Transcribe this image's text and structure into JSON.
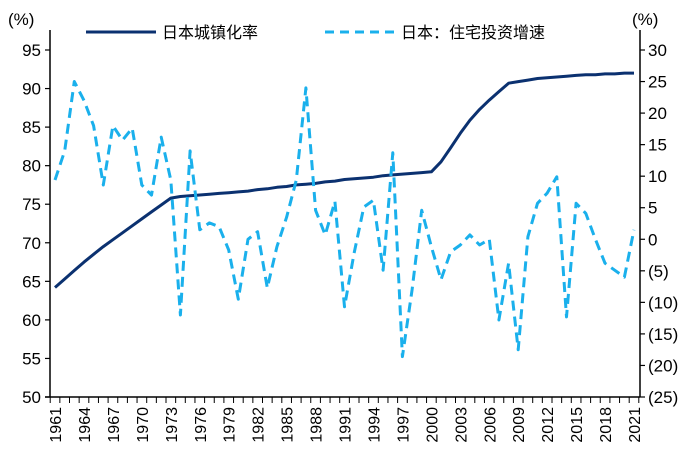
{
  "chart_data": {
    "type": "line",
    "left_unit": "(%)",
    "right_unit": "(%)",
    "left_ylim": [
      50,
      95
    ],
    "left_ticks": [
      "50",
      "55",
      "60",
      "65",
      "70",
      "75",
      "80",
      "85",
      "90",
      "95"
    ],
    "right_ylim": [
      -25,
      30
    ],
    "right_ticks": [
      "(25)",
      "(20)",
      "(15)",
      "(10)",
      "(5)",
      "0",
      "5",
      "10",
      "15",
      "20",
      "25",
      "30"
    ],
    "x_tick_labels": [
      "1961",
      "1964",
      "1967",
      "1970",
      "1973",
      "1976",
      "1979",
      "1982",
      "1985",
      "1988",
      "1991",
      "1994",
      "1997",
      "2000",
      "2003",
      "2006",
      "2009",
      "2012",
      "2015",
      "2018",
      "2021"
    ],
    "grid": false,
    "legend_position": "top",
    "x": [
      1961,
      1962,
      1963,
      1964,
      1965,
      1966,
      1967,
      1968,
      1969,
      1970,
      1971,
      1972,
      1973,
      1974,
      1975,
      1976,
      1977,
      1978,
      1979,
      1980,
      1981,
      1982,
      1983,
      1984,
      1985,
      1986,
      1987,
      1988,
      1989,
      1990,
      1991,
      1992,
      1993,
      1994,
      1995,
      1996,
      1997,
      1998,
      1999,
      2000,
      2001,
      2002,
      2003,
      2004,
      2005,
      2006,
      2007,
      2008,
      2009,
      2010,
      2011,
      2012,
      2013,
      2014,
      2015,
      2016,
      2017,
      2018,
      2019,
      2020,
      2021
    ],
    "series": [
      {
        "name": "日本城镇化率",
        "axis": "left",
        "color": "#0b3170",
        "style": "solid",
        "values": [
          64.2,
          65.3,
          66.4,
          67.5,
          68.5,
          69.5,
          70.4,
          71.3,
          72.2,
          73.1,
          74.0,
          74.9,
          75.8,
          76.0,
          76.1,
          76.2,
          76.3,
          76.4,
          76.5,
          76.6,
          76.7,
          76.9,
          77.0,
          77.2,
          77.3,
          77.5,
          77.6,
          77.7,
          77.9,
          78.0,
          78.2,
          78.3,
          78.4,
          78.5,
          78.7,
          78.8,
          78.9,
          79.0,
          79.1,
          79.2,
          80.5,
          82.3,
          84.2,
          85.9,
          87.3,
          88.5,
          89.6,
          90.7,
          90.9,
          91.1,
          91.3,
          91.4,
          91.5,
          91.6,
          91.7,
          91.8,
          91.8,
          91.9,
          91.9,
          92.0,
          92.0
        ]
      },
      {
        "name": "日本：住宅投资增速",
        "axis": "right",
        "color": "#1ab0ec",
        "style": "dashed",
        "values": [
          9.4,
          14,
          25,
          22,
          18,
          8.6,
          18,
          15.7,
          17.6,
          8.6,
          7,
          16.2,
          9.4,
          -12,
          14,
          1.5,
          2.6,
          2,
          -1.7,
          -9.5,
          0,
          1.2,
          -7.7,
          -1.2,
          3.5,
          9.4,
          24,
          4.6,
          0.7,
          6,
          -10.7,
          -2.2,
          5.1,
          6.2,
          -4.9,
          13.7,
          -18.6,
          -8,
          4.6,
          -1.2,
          -6.4,
          -2,
          -0.9,
          0.7,
          -0.9,
          0,
          -12.8,
          -3.8,
          -17.5,
          0.4,
          5.7,
          7.3,
          9.9,
          -12.3,
          5.7,
          4.1,
          0,
          -3.8,
          -4.9,
          -6,
          1.5
        ]
      }
    ]
  }
}
